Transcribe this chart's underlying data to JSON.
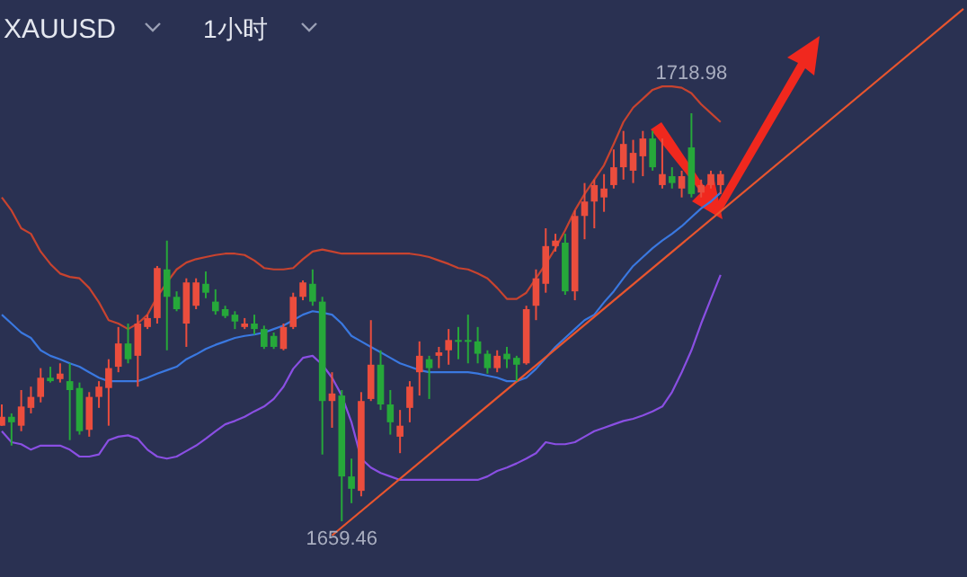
{
  "chart_data": {
    "type": "candlestick",
    "title": "XAUUSD",
    "subtitle": "1小时",
    "categories": [
      null,
      null,
      null,
      null,
      null,
      null,
      null,
      null,
      null,
      null,
      null,
      null,
      null,
      null,
      null,
      null,
      null,
      null,
      null,
      null,
      null,
      null,
      null,
      null,
      null,
      null,
      null,
      null,
      null,
      null,
      null,
      null,
      null,
      null,
      null,
      null,
      null,
      null,
      null,
      null,
      null,
      null,
      null,
      null,
      null,
      null,
      null,
      null,
      null,
      null,
      null,
      null,
      null,
      null,
      null,
      null,
      null,
      null,
      null,
      null,
      null,
      null,
      null,
      null,
      null,
      null,
      null,
      null,
      null,
      null,
      null,
      null,
      null,
      null,
      null,
      null,
      null,
      null,
      null,
      null,
      null,
      null,
      null,
      null,
      null,
      null,
      null,
      null,
      null,
      null,
      null,
      null,
      null,
      null,
      null,
      null,
      null,
      null,
      null,
      null
    ],
    "ohlc": [
      [
        1673.4,
        1676.5,
        1673.4,
        1674.7
      ],
      [
        1674.7,
        1675.2,
        1670.5,
        1673.9
      ],
      [
        1673.4,
        1678.6,
        1672.6,
        1676.2
      ],
      [
        1676.0,
        1679.1,
        1675.2,
        1677.6
      ],
      [
        1677.6,
        1681.8,
        1676.8,
        1680.4
      ],
      [
        1680.4,
        1682.0,
        1679.7,
        1679.9
      ],
      [
        1680.2,
        1682.5,
        1679.7,
        1681.0
      ],
      [
        1679.9,
        1682.5,
        1671.3,
        1678.6
      ],
      [
        1678.9,
        1679.7,
        1672.1,
        1672.6
      ],
      [
        1672.8,
        1678.3,
        1671.8,
        1677.6
      ],
      [
        1677.6,
        1679.9,
        1676.0,
        1679.1
      ],
      [
        1678.9,
        1683.1,
        1673.4,
        1681.8
      ],
      [
        1682.0,
        1687.8,
        1681.2,
        1685.4
      ],
      [
        1685.4,
        1688.3,
        1682.5,
        1683.1
      ],
      [
        1683.6,
        1689.6,
        1679.1,
        1688.3
      ],
      [
        1687.8,
        1689.6,
        1687.5,
        1689.1
      ],
      [
        1689.1,
        1696.7,
        1688.3,
        1696.4
      ],
      [
        1696.2,
        1700.4,
        1684.4,
        1692.2
      ],
      [
        1692.2,
        1693.0,
        1690.1,
        1690.4
      ],
      [
        1688.3,
        1694.9,
        1684.9,
        1694.3
      ],
      [
        1690.9,
        1694.9,
        1690.4,
        1694.3
      ],
      [
        1694.1,
        1695.9,
        1692.0,
        1692.8
      ],
      [
        1691.5,
        1693.3,
        1689.6,
        1690.1
      ],
      [
        1690.4,
        1690.9,
        1689.1,
        1689.4
      ],
      [
        1689.6,
        1690.1,
        1687.5,
        1688.6
      ],
      [
        1687.8,
        1689.1,
        1687.5,
        1688.3
      ],
      [
        1688.3,
        1689.6,
        1686.7,
        1687.5
      ],
      [
        1687.5,
        1688.0,
        1684.6,
        1684.9
      ],
      [
        1686.5,
        1687.0,
        1684.6,
        1684.9
      ],
      [
        1684.6,
        1688.3,
        1684.4,
        1687.8
      ],
      [
        1687.8,
        1692.8,
        1687.5,
        1692.2
      ],
      [
        1692.2,
        1694.6,
        1691.7,
        1694.3
      ],
      [
        1694.1,
        1696.2,
        1690.9,
        1691.5
      ],
      [
        1691.5,
        1692.2,
        1669.2,
        1677.0
      ],
      [
        1677.0,
        1681.2,
        1673.1,
        1678.1
      ],
      [
        1677.8,
        1678.6,
        1659.46,
        1666.0
      ],
      [
        1666.0,
        1668.6,
        1662.1,
        1664.2
      ],
      [
        1663.9,
        1678.3,
        1663.1,
        1677.0
      ],
      [
        1677.3,
        1688.8,
        1677.0,
        1682.3
      ],
      [
        1682.3,
        1684.4,
        1675.7,
        1676.5
      ],
      [
        1676.5,
        1678.6,
        1672.1,
        1673.9
      ],
      [
        1671.8,
        1675.7,
        1669.4,
        1673.4
      ],
      [
        1676.0,
        1679.9,
        1673.9,
        1679.1
      ],
      [
        1681.2,
        1685.7,
        1677.8,
        1683.6
      ],
      [
        1683.1,
        1683.6,
        1677.3,
        1681.8
      ],
      [
        1683.6,
        1684.9,
        1681.8,
        1684.1
      ],
      [
        1684.4,
        1687.5,
        1682.3,
        1685.9
      ],
      [
        1685.9,
        1687.8,
        1683.1,
        1685.7
      ],
      [
        1685.9,
        1689.6,
        1682.5,
        1685.7
      ],
      [
        1685.7,
        1687.8,
        1682.5,
        1683.9
      ],
      [
        1683.9,
        1684.4,
        1681.0,
        1681.8
      ],
      [
        1681.8,
        1684.4,
        1681.2,
        1683.6
      ],
      [
        1683.9,
        1684.9,
        1681.8,
        1683.1
      ],
      [
        1683.3,
        1683.6,
        1679.9,
        1682.3
      ],
      [
        1682.5,
        1690.9,
        1682.3,
        1690.4
      ],
      [
        1690.9,
        1696.2,
        1688.8,
        1694.9
      ],
      [
        1694.1,
        1702.2,
        1692.8,
        1699.6
      ],
      [
        1699.6,
        1701.4,
        1698.8,
        1700.4
      ],
      [
        1700.1,
        1701.4,
        1692.5,
        1693.0
      ],
      [
        1693.0,
        1704.8,
        1691.7,
        1704.0
      ],
      [
        1704.0,
        1708.8,
        1700.6,
        1706.1
      ],
      [
        1706.1,
        1709.3,
        1702.2,
        1708.5
      ],
      [
        1706.7,
        1710.1,
        1704.6,
        1708.0
      ],
      [
        1708.5,
        1713.7,
        1708.0,
        1711.1
      ],
      [
        1711.1,
        1716.4,
        1709.3,
        1714.5
      ],
      [
        1710.6,
        1715.1,
        1708.8,
        1713.2
      ],
      [
        1712.7,
        1716.4,
        1709.8,
        1715.3
      ],
      [
        1715.3,
        1716.4,
        1710.6,
        1711.1
      ],
      [
        1708.5,
        1715.3,
        1708.0,
        1710.1
      ],
      [
        1709.8,
        1711.1,
        1708.0,
        1708.8
      ],
      [
        1708.0,
        1710.6,
        1706.7,
        1709.8
      ],
      [
        1714.0,
        1718.98,
        1706.7,
        1707.2
      ],
      [
        1707.4,
        1709.3,
        1706.7,
        1708.5
      ],
      [
        1708.5,
        1710.6,
        1708.0,
        1710.1
      ],
      [
        1708.5,
        1710.6,
        1707.2,
        1710.1
      ],
      null,
      null,
      null,
      null,
      null,
      null,
      null,
      null,
      null,
      null,
      null,
      null,
      null,
      null,
      null,
      null,
      null,
      null,
      null,
      null,
      null,
      null,
      null,
      null,
      null
    ],
    "colors": [
      "#eb4d3d",
      "#26a83a",
      "#eb4d3d",
      "#eb4d3d",
      "#eb4d3d",
      "#26a83a",
      "#eb4d3d",
      "#26a83a",
      "#26a83a",
      "#eb4d3d",
      "#eb4d3d",
      "#eb4d3d",
      "#eb4d3d",
      "#26a83a",
      "#eb4d3d",
      "#eb4d3d",
      "#eb4d3d",
      "#26a83a",
      "#26a83a",
      "#eb4d3d",
      "#eb4d3d",
      "#26a83a",
      "#26a83a",
      "#26a83a",
      "#26a83a",
      "#eb4d3d",
      "#26a83a",
      "#26a83a",
      "#26a83a",
      "#eb4d3d",
      "#eb4d3d",
      "#eb4d3d",
      "#26a83a",
      "#26a83a",
      "#eb4d3d",
      "#26a83a",
      "#26a83a",
      "#eb4d3d",
      "#eb4d3d",
      "#26a83a",
      "#26a83a",
      "#eb4d3d",
      "#eb4d3d",
      "#eb4d3d",
      "#26a83a",
      "#eb4d3d",
      "#eb4d3d",
      "#26a83a",
      "#26a83a",
      "#26a83a",
      "#26a83a",
      "#eb4d3d",
      "#26a83a",
      "#26a83a",
      "#eb4d3d",
      "#eb4d3d",
      "#eb4d3d",
      "#eb4d3d",
      "#26a83a",
      "#eb4d3d",
      "#eb4d3d",
      "#eb4d3d",
      "#eb4d3d",
      "#eb4d3d",
      "#eb4d3d",
      "#eb4d3d",
      "#eb4d3d",
      "#26a83a",
      "#eb4d3d",
      "#26a83a",
      "#eb4d3d",
      "#26a83a",
      "#eb4d3d",
      "#eb4d3d",
      "#eb4d3d",
      null,
      null,
      null,
      null,
      null,
      null,
      null,
      null,
      null,
      null,
      null,
      null,
      null,
      null,
      null,
      null,
      null,
      null,
      null,
      null,
      null,
      null,
      null,
      null,
      null
    ],
    "series": [
      {
        "type": "line",
        "color": "#c8432f",
        "values": [
          1706.7,
          1704.8,
          1702.2,
          1701.4,
          1698.8,
          1697.0,
          1695.6,
          1695.1,
          1694.9,
          1693.5,
          1691.4,
          1688.8,
          1688.3,
          1687.5,
          1688.3,
          1689.6,
          1692.2,
          1694.3,
          1696.2,
          1697.2,
          1697.7,
          1698.0,
          1698.3,
          1698.5,
          1698.5,
          1698.3,
          1697.5,
          1696.4,
          1696.2,
          1696.2,
          1696.4,
          1697.7,
          1698.8,
          1699.1,
          1698.8,
          1698.5,
          1698.5,
          1698.5,
          1698.5,
          1698.5,
          1698.5,
          1698.5,
          1698.5,
          1698.3,
          1698.0,
          1697.5,
          1697.0,
          1696.4,
          1696.2,
          1695.6,
          1694.9,
          1693.5,
          1691.9,
          1691.9,
          1692.8,
          1694.9,
          1697.0,
          1699.3,
          1701.9,
          1704.8,
          1707.2,
          1709.3,
          1711.4,
          1714.5,
          1717.7,
          1719.8,
          1721.1,
          1722.4,
          1722.9,
          1722.9,
          1722.7,
          1721.9,
          1720.3,
          1719.0,
          1717.7,
          null,
          null,
          null,
          null,
          null,
          null,
          null,
          null,
          null,
          null,
          null,
          null,
          null,
          null,
          null,
          null,
          null,
          null,
          null,
          null,
          null,
          null,
          null,
          null,
          null
        ]
      },
      {
        "type": "line",
        "color": "#3a78e0",
        "values": [
          1689.6,
          1688.3,
          1687.0,
          1686.2,
          1684.4,
          1683.6,
          1683.1,
          1682.5,
          1682.0,
          1681.2,
          1680.4,
          1679.9,
          1679.9,
          1679.9,
          1679.9,
          1680.4,
          1681.0,
          1681.5,
          1682.0,
          1683.1,
          1683.8,
          1684.6,
          1685.2,
          1685.7,
          1686.2,
          1686.5,
          1686.7,
          1687.0,
          1687.5,
          1688.0,
          1688.8,
          1689.6,
          1690.1,
          1689.9,
          1689.6,
          1688.3,
          1686.5,
          1685.7,
          1684.9,
          1684.1,
          1683.3,
          1682.5,
          1682.0,
          1681.5,
          1681.2,
          1681.2,
          1681.2,
          1681.2,
          1681.2,
          1681.0,
          1680.7,
          1680.4,
          1679.9,
          1679.9,
          1680.4,
          1681.7,
          1683.3,
          1684.9,
          1686.2,
          1687.5,
          1688.8,
          1689.6,
          1691.4,
          1693.0,
          1694.9,
          1696.7,
          1698.0,
          1699.3,
          1700.4,
          1701.4,
          1702.5,
          1703.8,
          1705.1,
          1706.1,
          1707.4,
          null,
          null,
          null,
          null,
          null,
          null,
          null,
          null,
          null,
          null,
          null,
          null,
          null,
          null,
          null,
          null,
          null,
          null,
          null,
          null,
          null,
          null,
          null,
          null,
          null
        ]
      },
      {
        "type": "line",
        "color": "#8a4fe3",
        "values": [
          1672.6,
          1671.0,
          1670.7,
          1669.9,
          1670.5,
          1670.5,
          1670.5,
          1669.9,
          1668.9,
          1668.9,
          1669.2,
          1671.3,
          1671.8,
          1672.0,
          1671.5,
          1669.9,
          1668.9,
          1668.6,
          1668.9,
          1669.7,
          1670.5,
          1671.5,
          1672.6,
          1673.6,
          1674.1,
          1674.7,
          1675.5,
          1676.2,
          1677.3,
          1679.1,
          1681.7,
          1683.3,
          1683.6,
          1682.3,
          1680.4,
          1677.8,
          1673.9,
          1668.6,
          1667.3,
          1666.5,
          1666.0,
          1665.5,
          1665.5,
          1665.5,
          1665.5,
          1665.5,
          1665.5,
          1665.5,
          1665.5,
          1665.5,
          1666.0,
          1666.8,
          1667.3,
          1667.9,
          1668.6,
          1669.4,
          1671.0,
          1670.7,
          1670.7,
          1671.0,
          1671.8,
          1672.6,
          1673.1,
          1673.6,
          1674.1,
          1674.4,
          1674.9,
          1675.5,
          1676.2,
          1678.3,
          1681.2,
          1684.4,
          1688.3,
          1691.9,
          1695.4,
          null,
          null,
          null,
          null,
          null,
          null,
          null,
          null,
          null,
          null,
          null,
          null,
          null,
          null,
          null,
          null,
          null,
          null,
          null,
          null,
          null,
          null,
          null,
          null,
          null
        ]
      },
      {
        "type": "line",
        "color": "#e8552e",
        "values": [
          null,
          null,
          null,
          null,
          null,
          null,
          null,
          null,
          null,
          null,
          null,
          null,
          null,
          null,
          null,
          null,
          null,
          null,
          null,
          null,
          null,
          null,
          null,
          null,
          null,
          null,
          null,
          null,
          null,
          null,
          null,
          null,
          null,
          null,
          1657.4,
          null,
          null,
          null,
          null,
          null,
          null,
          null,
          null,
          null,
          null,
          null,
          null,
          null,
          null,
          null,
          null,
          null,
          null,
          null,
          null,
          null,
          null,
          null,
          null,
          null,
          null,
          null,
          null,
          null,
          null,
          null,
          null,
          null,
          null,
          null,
          null,
          null,
          null,
          null,
          null,
          null,
          null,
          null,
          null,
          null,
          null,
          null,
          null,
          null,
          null,
          null,
          null,
          null,
          null,
          null,
          null,
          null,
          null,
          null,
          null,
          null,
          null,
          null,
          null,
          1734.2
        ]
      }
    ],
    "annotations": [
      "1718.98",
      "1659.46"
    ]
  }
}
